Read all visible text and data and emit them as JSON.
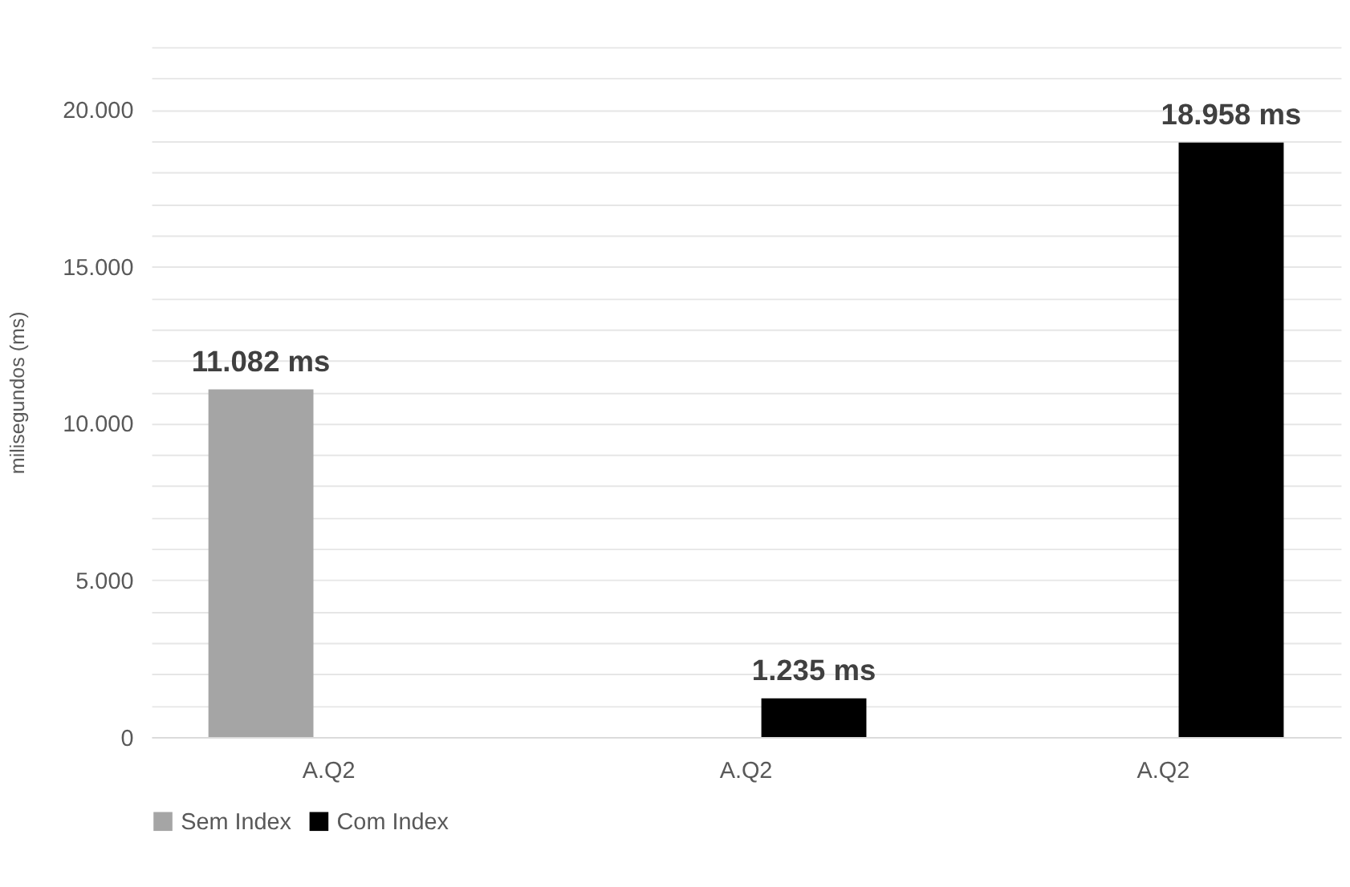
{
  "chart_data": {
    "type": "bar",
    "ylabel": "milisegundos (ms)",
    "categories": [
      "A.Q2",
      "A.Q2",
      "A.Q2"
    ],
    "series": [
      {
        "name": "Sem Index",
        "color": "#a5a5a5",
        "values": [
          11082,
          null,
          null
        ],
        "value_labels": [
          "11.082 ms",
          null,
          null
        ]
      },
      {
        "name": "Com Index",
        "color": "#000000",
        "values": [
          null,
          1235,
          18958
        ],
        "value_labels": [
          null,
          "1.235 ms",
          "18.958 ms"
        ]
      }
    ],
    "ylim": [
      0,
      22000
    ],
    "yticks": [
      0,
      {
        "value": 1000,
        "label": null
      },
      {
        "value": 2000,
        "label": null
      },
      {
        "value": 3000,
        "label": null
      },
      {
        "value": 4000,
        "label": null
      },
      {
        "value": 5000,
        "label": "5.000"
      },
      {
        "value": 6000,
        "label": null
      },
      {
        "value": 7000,
        "label": null
      },
      {
        "value": 8000,
        "label": null
      },
      {
        "value": 9000,
        "label": null
      },
      {
        "value": 10000,
        "label": "10.000"
      },
      {
        "value": 11000,
        "label": null
      },
      {
        "value": 12000,
        "label": null
      },
      {
        "value": 13000,
        "label": null
      },
      {
        "value": 14000,
        "label": null
      },
      {
        "value": 15000,
        "label": "15.000"
      },
      {
        "value": 16000,
        "label": null
      },
      {
        "value": 17000,
        "label": null
      },
      {
        "value": 18000,
        "label": null
      },
      {
        "value": 19000,
        "label": null
      },
      {
        "value": 20000,
        "label": "20.000"
      },
      {
        "value": 21000,
        "label": null
      },
      {
        "value": 22000,
        "label": null
      }
    ],
    "grid": "y",
    "legend": "bottom"
  }
}
